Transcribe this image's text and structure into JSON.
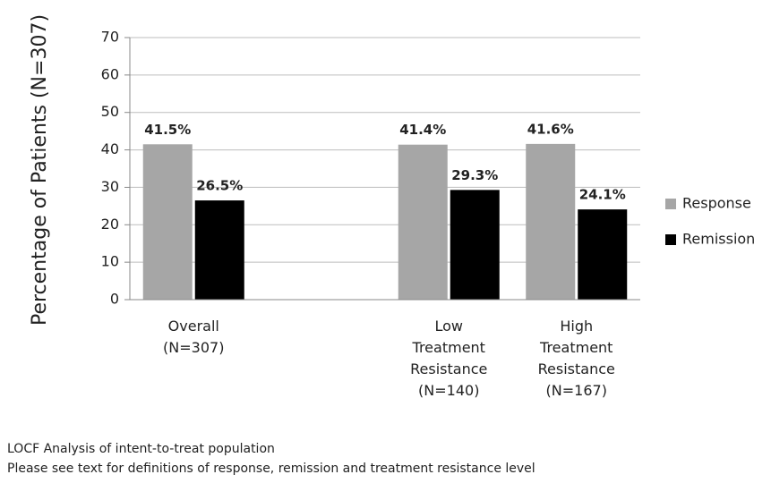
{
  "chart_data": {
    "type": "bar",
    "ylabel": "Percentage of Patients (N=307)",
    "categories": [
      "Overall (N=307)",
      null,
      "Low Treatment Resistance (N=140)",
      "High Treatment Resistance (N=167)"
    ],
    "series": [
      {
        "name": "Response",
        "color": "#a6a6a6",
        "values": [
          41.5,
          null,
          41.4,
          41.6
        ],
        "value_labels": [
          "41.5%",
          null,
          "41.4%",
          "41.6%"
        ]
      },
      {
        "name": "Remission",
        "color": "#000000",
        "values": [
          26.5,
          null,
          29.3,
          24.1
        ],
        "value_labels": [
          "26.5%",
          null,
          "29.3%",
          "24.1%"
        ]
      }
    ],
    "ylim": [
      0,
      70
    ],
    "yticks": [
      0,
      10,
      20,
      30,
      40,
      50,
      60,
      70
    ],
    "grid": true,
    "legend": "right",
    "notes": [
      "LOCF Analysis of intent-to-treat population",
      "Please see text for definitions of response, remission and treatment resistance level"
    ]
  }
}
